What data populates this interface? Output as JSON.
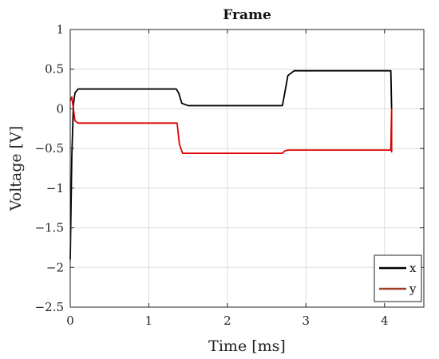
{
  "chart_data": {
    "type": "line",
    "title": "Frame",
    "xlabel": "Time [ms]",
    "ylabel": "Voltage [V]",
    "xlim": [
      0,
      4.5
    ],
    "ylim": [
      -2.5,
      1
    ],
    "x_ticks": [
      0,
      1,
      2,
      3,
      4
    ],
    "x_tick_labels": [
      "0",
      "1",
      "2",
      "3",
      "4"
    ],
    "y_ticks": [
      1,
      0.5,
      0,
      -0.5,
      -1,
      -1.5,
      -2,
      -2.5
    ],
    "y_tick_labels": [
      "1",
      "0.5",
      "0",
      "−0.5",
      "−1",
      "−1.5",
      "−2",
      "−2.5"
    ],
    "grid": true,
    "legend_position": "bottom-right",
    "series": [
      {
        "name": "x",
        "color": "#000000",
        "legend_color": "#000000",
        "points": [
          [
            0.0,
            -1.9
          ],
          [
            0.02,
            -0.6
          ],
          [
            0.04,
            0.05
          ],
          [
            0.06,
            0.2
          ],
          [
            0.1,
            0.25
          ],
          [
            1.35,
            0.25
          ],
          [
            1.38,
            0.2
          ],
          [
            1.42,
            0.07
          ],
          [
            1.5,
            0.04
          ],
          [
            2.7,
            0.04
          ],
          [
            2.73,
            0.2
          ],
          [
            2.77,
            0.42
          ],
          [
            2.85,
            0.48
          ],
          [
            4.08,
            0.48
          ],
          [
            4.09,
            0.0
          ]
        ]
      },
      {
        "name": "y",
        "color": "#e00000",
        "legend_color": "#a0402a",
        "points": [
          [
            0.0,
            0.1
          ],
          [
            0.02,
            0.15
          ],
          [
            0.04,
            0.0
          ],
          [
            0.06,
            -0.15
          ],
          [
            0.1,
            -0.18
          ],
          [
            1.36,
            -0.18
          ],
          [
            1.39,
            -0.45
          ],
          [
            1.43,
            -0.56
          ],
          [
            2.7,
            -0.56
          ],
          [
            2.73,
            -0.53
          ],
          [
            2.77,
            -0.52
          ],
          [
            4.08,
            -0.52
          ],
          [
            4.09,
            0.0
          ],
          [
            4.09,
            -0.55
          ]
        ]
      }
    ]
  }
}
